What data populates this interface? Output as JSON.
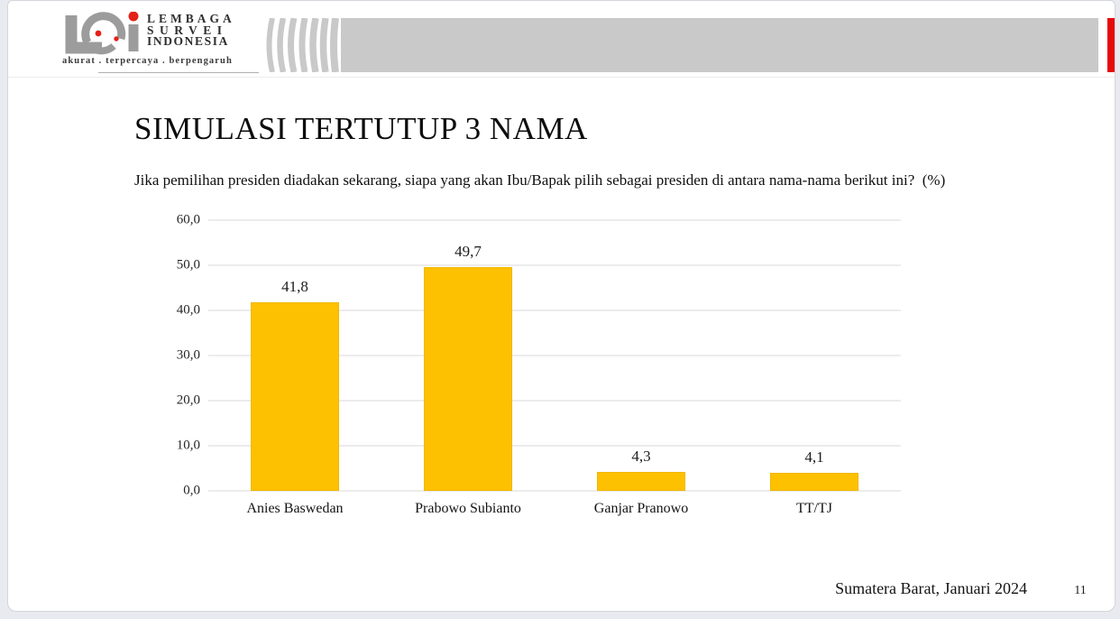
{
  "logo": {
    "line1": "LEMBAGA",
    "line2": "SURVEI",
    "line3": "INDONESIA",
    "tagline": "akurat . terpercaya . berpengaruh"
  },
  "slide": {
    "title": "SIMULASI TERTUTUP 3 NAMA",
    "subtitle": "Jika pemilihan presiden diadakan sekarang, siapa yang akan Ibu/Bapak pilih sebagai presiden di antara nama-nama berikut ini?  (%)",
    "footer_text": "Sumatera Barat, Januari 2024",
    "page_number": "11"
  },
  "colors": {
    "bar": "#FDC101",
    "header_band": "#C9C9C9",
    "accent_red": "#E60A0A",
    "gridline": "#D9D9D9",
    "logo_gray": "#9C9C9C"
  },
  "chart_data": {
    "type": "bar",
    "categories": [
      "Anies Baswedan",
      "Prabowo Subianto",
      "Ganjar Pranowo",
      "TT/TJ"
    ],
    "values": [
      41.8,
      49.7,
      4.3,
      4.1
    ],
    "value_labels": [
      "41,8",
      "49,7",
      "4,3",
      "4,1"
    ],
    "title": "SIMULASI TERTUTUP 3 NAMA",
    "xlabel": "",
    "ylabel": "",
    "ylim": [
      0,
      60
    ],
    "yticks": [
      0,
      10,
      20,
      30,
      40,
      50,
      60
    ],
    "ytick_labels": [
      "0,0",
      "10,0",
      "20,0",
      "30,0",
      "40,0",
      "50,0",
      "60,0"
    ],
    "grid": true,
    "legend": false,
    "bar_color": "#FDC101"
  }
}
